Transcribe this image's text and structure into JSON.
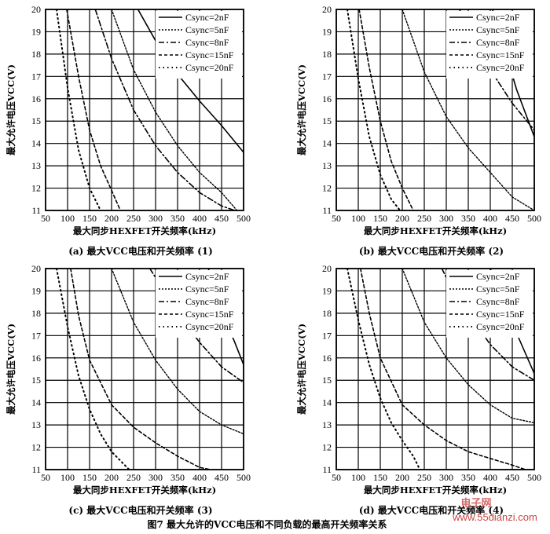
{
  "figure": {
    "title": "图7   最大允许的Vₓₓ电压和不同负载的最高开关频率关系",
    "title_text": "图7  最大允许的VCC电压和不同负载的最高开关频率关系",
    "watermark": "www.55dianzi.com",
    "watermark_logo": "电子网"
  },
  "legend_items": [
    "Csync=2nF",
    "Csync=5nF",
    "Csync=8nF",
    "Csync=15nF",
    "Csync=20nF"
  ],
  "chart_data": [
    {
      "type": "line",
      "caption": "(a) 最大VCC电压和开关频率 (1)",
      "xlabel": "最大同步HEXFET开关频率(kHz)",
      "ylabel": "最大允许电压VCC(V)",
      "xlim": [
        50,
        500
      ],
      "ylim": [
        11,
        20
      ],
      "xticks": [
        50,
        100,
        150,
        200,
        250,
        300,
        350,
        400,
        450,
        500
      ],
      "yticks": [
        11,
        12,
        13,
        14,
        15,
        16,
        17,
        18,
        19,
        20
      ],
      "grid": true,
      "legend": "top-right",
      "series": [
        {
          "name": "Csync=2nF",
          "x": [
            260,
            300,
            350,
            400,
            450,
            500
          ],
          "y": [
            20,
            18.6,
            17.1,
            15.9,
            14.8,
            13.6
          ]
        },
        {
          "name": "Csync=5nF",
          "x": [
            200,
            250,
            300,
            350,
            400,
            450,
            485
          ],
          "y": [
            20,
            17.3,
            15.4,
            13.9,
            12.7,
            11.8,
            11
          ]
        },
        {
          "name": "Csync=8nF",
          "x": [
            163,
            200,
            250,
            300,
            350,
            400,
            450,
            480
          ],
          "y": [
            20,
            17.8,
            15.5,
            13.9,
            12.7,
            11.8,
            11.2,
            11
          ]
        },
        {
          "name": "Csync=15nF",
          "x": [
            98,
            125,
            150,
            175,
            200,
            220
          ],
          "y": [
            20,
            17,
            14.6,
            13,
            11.9,
            11
          ]
        },
        {
          "name": "Csync=20nF",
          "x": [
            75,
            100,
            125,
            150,
            175
          ],
          "y": [
            20,
            16.5,
            13.7,
            12,
            11
          ]
        }
      ]
    },
    {
      "type": "line",
      "caption": "(b) 最大VCC电压和开关频率 (2)",
      "xlabel": "最大同步HEXFET开关频率(kHz)",
      "ylabel": "最大允许电压VCC(V)",
      "xlim": [
        50,
        500
      ],
      "ylim": [
        11,
        20
      ],
      "xticks": [
        50,
        100,
        150,
        200,
        250,
        300,
        350,
        400,
        450,
        500
      ],
      "yticks": [
        11,
        12,
        13,
        14,
        15,
        16,
        17,
        18,
        19,
        20
      ],
      "grid": true,
      "legend": "top-right",
      "series": [
        {
          "name": "Csync=2nF",
          "x": [
            405,
            430,
            460,
            500
          ],
          "y": [
            20,
            18.4,
            16.4,
            14.3
          ]
        },
        {
          "name": "Csync=5nF",
          "x": [
            200,
            250,
            300,
            350,
            400,
            450,
            500
          ],
          "y": [
            20,
            17.2,
            15.2,
            13.8,
            12.7,
            11.6,
            11
          ]
        },
        {
          "name": "Csync=8nF",
          "x": [
            330,
            350,
            400,
            450,
            500
          ],
          "y": [
            20,
            19.2,
            17.3,
            15.8,
            14.6
          ]
        },
        {
          "name": "Csync=15nF",
          "x": [
            102,
            125,
            150,
            175,
            200,
            225
          ],
          "y": [
            20,
            17.4,
            15,
            13.2,
            12,
            11
          ]
        },
        {
          "name": "Csync=20nF",
          "x": [
            75,
            100,
            125,
            150,
            175,
            195
          ],
          "y": [
            20,
            16.9,
            14.3,
            12.6,
            11.5,
            11
          ]
        }
      ]
    },
    {
      "type": "line",
      "caption": "(c) 最大VCC电压和开关频率 (3)",
      "xlabel": "最大同步HEXFET开关频率(kHz)",
      "ylabel": "最大允许电压VCC(V)",
      "xlim": [
        50,
        500
      ],
      "ylim": [
        11,
        20
      ],
      "xticks": [
        50,
        100,
        150,
        200,
        250,
        300,
        350,
        400,
        450,
        500
      ],
      "yticks": [
        11,
        12,
        13,
        14,
        15,
        16,
        17,
        18,
        19,
        20
      ],
      "grid": true,
      "legend": "top-right",
      "series": [
        {
          "name": "Csync=2nF",
          "x": [
            420,
            450,
            480,
            500
          ],
          "y": [
            20,
            18.1,
            16.7,
            15.7
          ]
        },
        {
          "name": "Csync=5nF",
          "x": [
            200,
            250,
            300,
            350,
            400,
            450,
            500
          ],
          "y": [
            20,
            17.6,
            15.9,
            14.6,
            13.6,
            13,
            12.6
          ]
        },
        {
          "name": "Csync=8nF",
          "x": [
            287,
            300,
            350,
            400,
            450,
            500
          ],
          "y": [
            20,
            19.6,
            18,
            16.7,
            15.6,
            14.9
          ]
        },
        {
          "name": "Csync=15nF",
          "x": [
            107,
            125,
            150,
            200,
            250,
            300,
            350,
            400,
            425
          ],
          "y": [
            20,
            17.9,
            15.9,
            13.9,
            12.9,
            12.2,
            11.6,
            11.1,
            11
          ]
        },
        {
          "name": "Csync=20nF",
          "x": [
            75,
            100,
            125,
            150,
            175,
            200,
            240
          ],
          "y": [
            20,
            17.4,
            15.2,
            13.7,
            12.6,
            11.8,
            11
          ]
        }
      ]
    },
    {
      "type": "line",
      "caption": "(d) 最大VCC电压和开关频率 (4)",
      "xlabel": "最大同步HEXFET开关频率(kHz)",
      "ylabel": "最大允许电压VCC(V)",
      "xlim": [
        50,
        500
      ],
      "ylim": [
        11,
        20
      ],
      "xticks": [
        50,
        100,
        150,
        200,
        250,
        300,
        350,
        400,
        450,
        500
      ],
      "yticks": [
        11,
        12,
        13,
        14,
        15,
        16,
        17,
        18,
        19,
        20
      ],
      "grid": true,
      "legend": "top-right",
      "series": [
        {
          "name": "Csync=2nF",
          "x": [
            400,
            430,
            460,
            500
          ],
          "y": [
            20,
            18.5,
            17.1,
            15.3
          ]
        },
        {
          "name": "Csync=5nF",
          "x": [
            200,
            250,
            300,
            350,
            400,
            450,
            500
          ],
          "y": [
            20,
            17.6,
            16,
            14.8,
            13.9,
            13.3,
            13.1
          ]
        },
        {
          "name": "Csync=8nF",
          "x": [
            290,
            300,
            350,
            400,
            450,
            500
          ],
          "y": [
            20,
            19.6,
            18,
            16.6,
            15.6,
            15
          ]
        },
        {
          "name": "Csync=15nF",
          "x": [
            105,
            125,
            150,
            200,
            250,
            300,
            350,
            400,
            450,
            480
          ],
          "y": [
            20,
            18,
            16,
            13.9,
            13,
            12.3,
            11.8,
            11.5,
            11.2,
            11
          ]
        },
        {
          "name": "Csync=20nF",
          "x": [
            75,
            100,
            125,
            150,
            175,
            200,
            225,
            240
          ],
          "y": [
            20,
            17.7,
            15.7,
            14.2,
            13.1,
            12.3,
            11.6,
            11
          ]
        }
      ]
    }
  ]
}
